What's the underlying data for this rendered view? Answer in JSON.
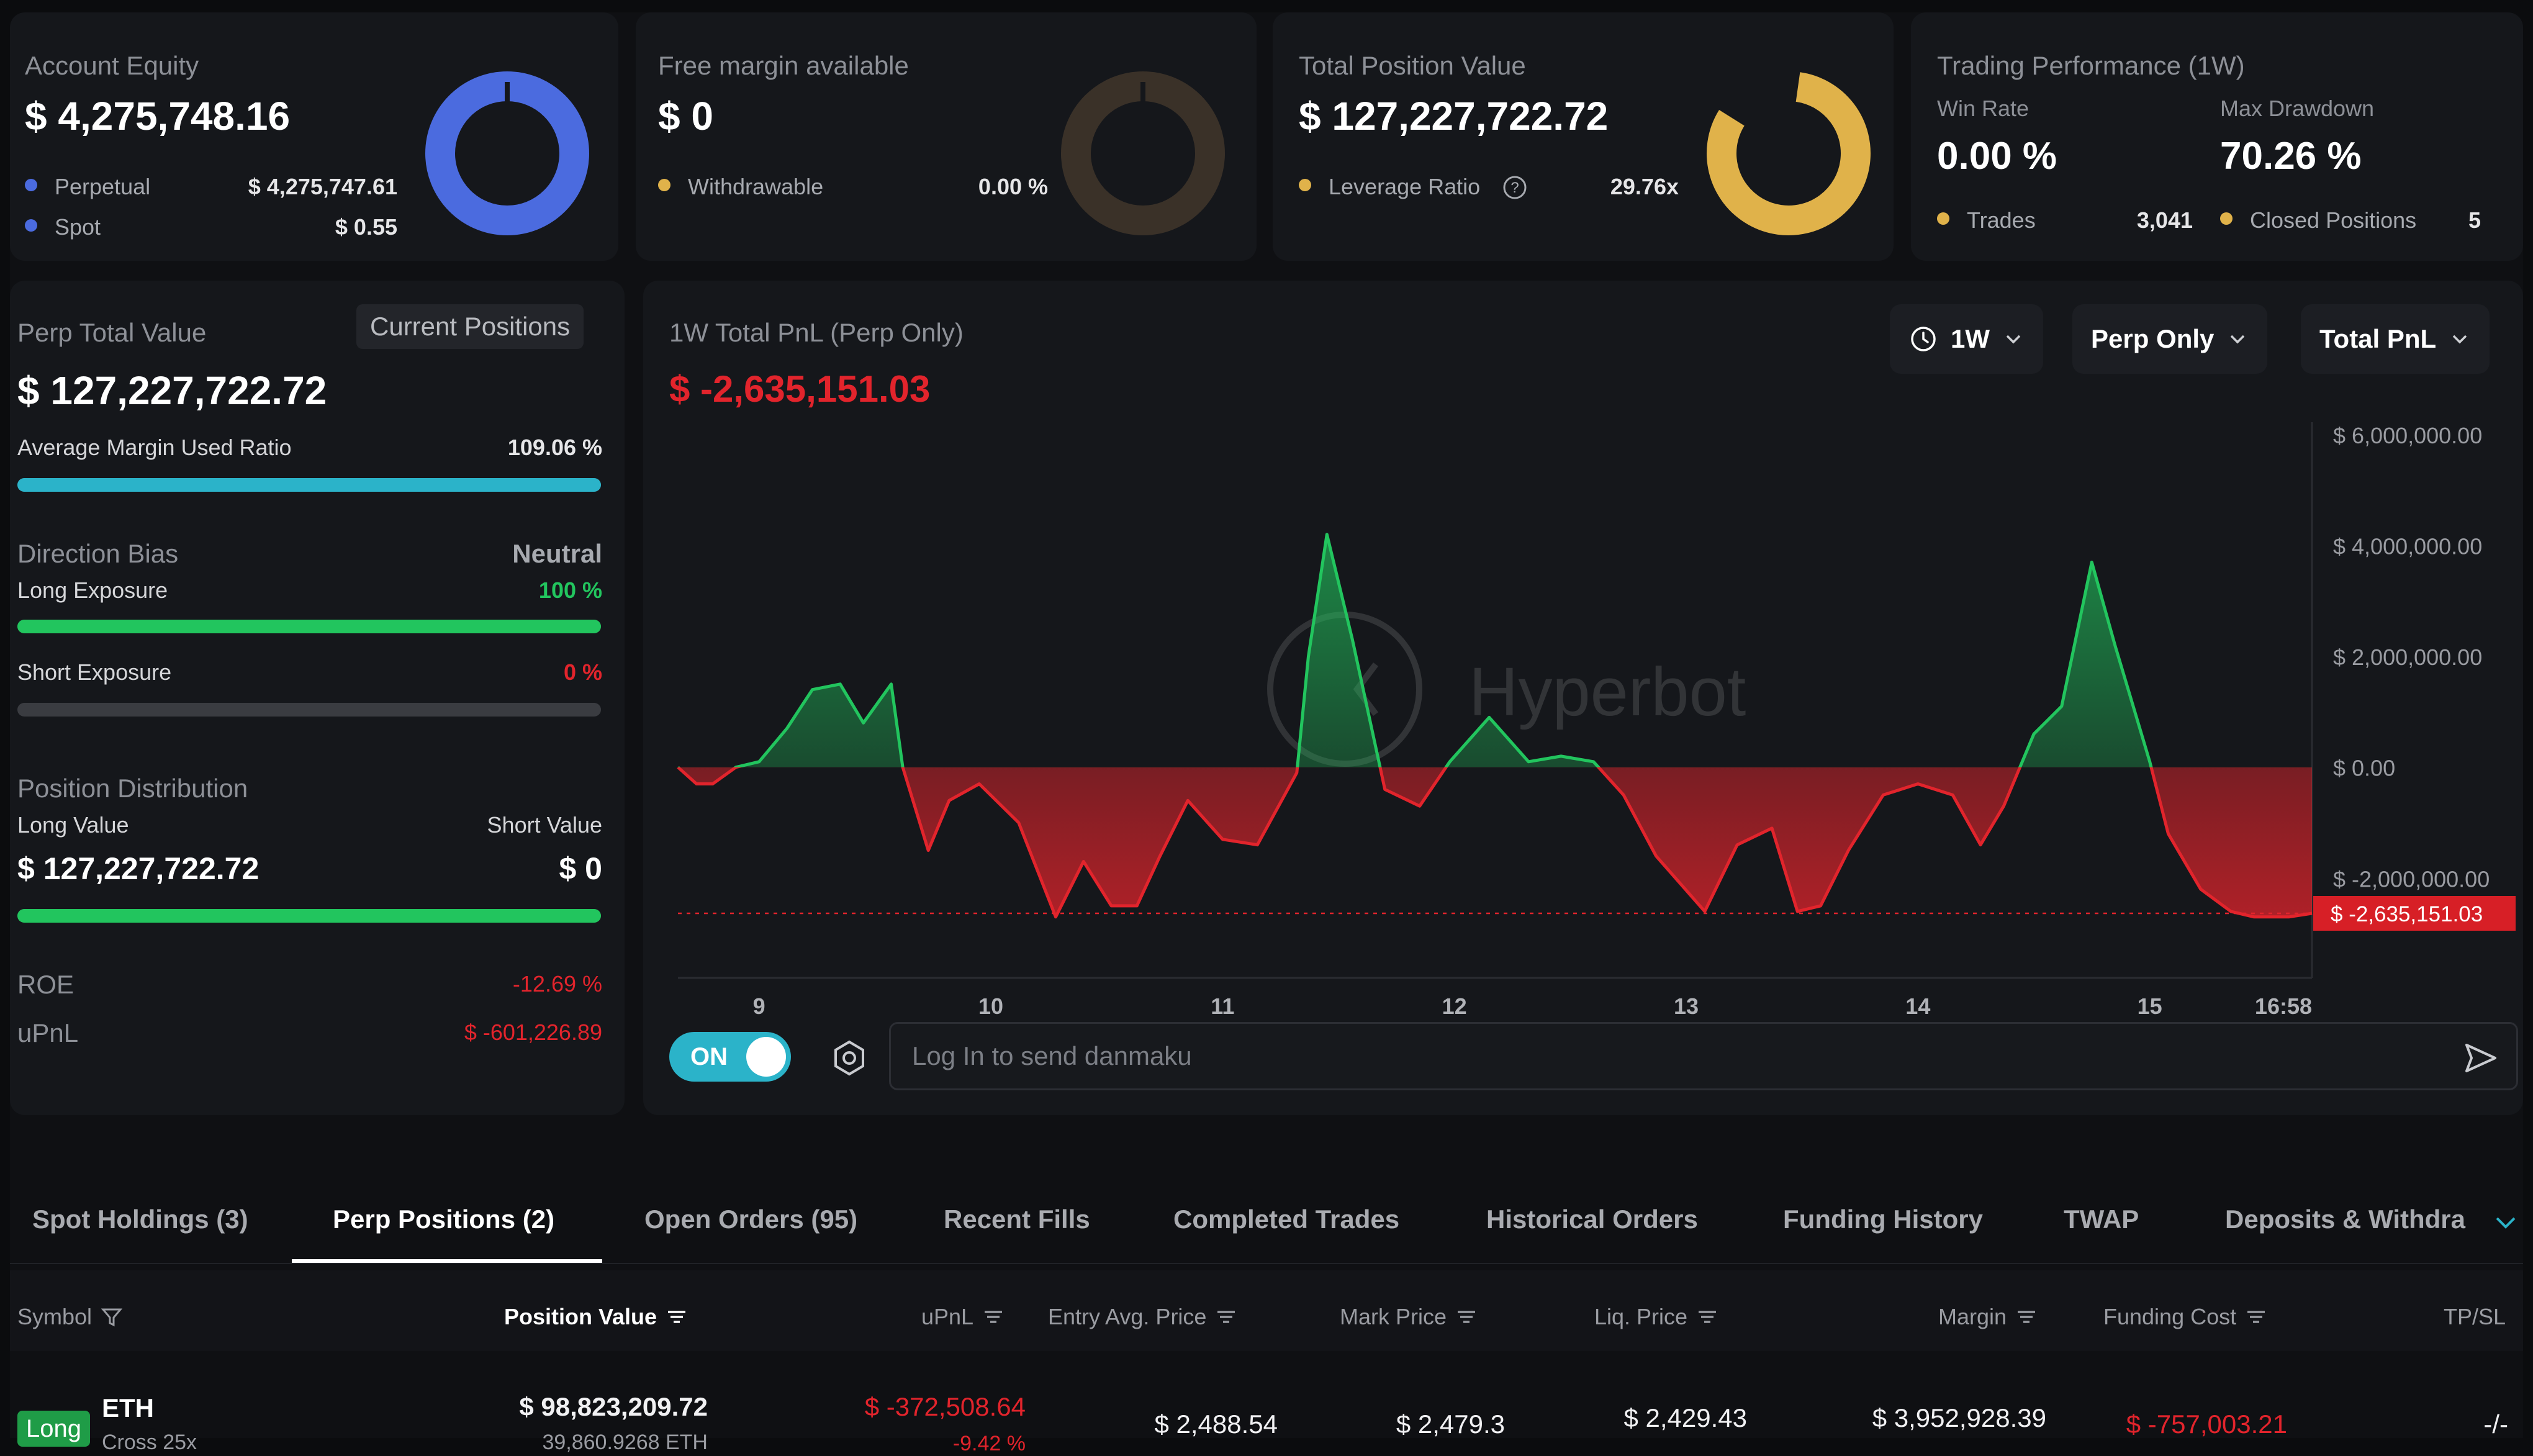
{
  "equity": {
    "title": "Account Equity",
    "value": "$ 4,275,748.16",
    "perpetual_label": "Perpetual",
    "perpetual_value": "$ 4,275,747.61",
    "spot_label": "Spot",
    "spot_value": "$ 0.55",
    "colors": {
      "perpetual": "#4b6bdf",
      "spot": "#4b6bdf"
    }
  },
  "free_margin": {
    "title": "Free margin available",
    "value": "$ 0",
    "withdrawable_label": "Withdrawable",
    "withdrawable_value": "0.00 %"
  },
  "position_value": {
    "title": "Total Position Value",
    "value": "$ 127,227,722.72",
    "leverage_label": "Leverage Ratio",
    "leverage_value": "29.76x",
    "help_icon": "question-circle-icon"
  },
  "performance": {
    "title": "Trading Performance (1W)",
    "win_rate_label": "Win Rate",
    "win_rate_value": "0.00 %",
    "max_drawdown_label": "Max Drawdown",
    "max_drawdown_value": "70.26 %",
    "trades_label": "Trades",
    "trades_value": "3,041",
    "closed_label": "Closed Positions",
    "closed_value": "5"
  },
  "perp_panel": {
    "title": "Perp Total Value",
    "current_positions_button": "Current Positions",
    "value": "$ 127,227,722.72",
    "avg_margin_label": "Average Margin Used Ratio",
    "avg_margin_value": "109.06 %",
    "avg_margin_fraction": 1.0,
    "direction_label": "Direction Bias",
    "direction_value": "Neutral",
    "long_label": "Long Exposure",
    "long_value": "100 %",
    "long_fraction": 1.0,
    "short_label": "Short Exposure",
    "short_value": "0 %",
    "short_fraction": 0.0,
    "distribution_label": "Position Distribution",
    "long_value_label": "Long Value",
    "short_value_label": "Short Value",
    "long_amount": "$ 127,227,722.72",
    "short_amount": "$ 0",
    "distribution_fraction": 1.0,
    "roe_label": "ROE",
    "roe_value": "-12.69 %",
    "upnl_label": "uPnL",
    "upnl_value": "$ -601,226.89"
  },
  "pnl_chart": {
    "title": "1W Total PnL (Perp Only)",
    "value": "$ -2,635,151.03",
    "range_dropdown": "1W",
    "scope_dropdown": "Perp Only",
    "metric_dropdown": "Total PnL",
    "watermark": "Hyperbot",
    "current_label": "$ -2,635,151.03",
    "danmaku_toggle": "ON",
    "danmaku_placeholder": "Log In to send danmaku"
  },
  "chart_data": {
    "type": "area",
    "y_tick_labels": [
      "$ 6,000,000.00",
      "$ 4,000,000.00",
      "$ 2,000,000.00",
      "$ 0.00",
      "$ -2,000,000.00"
    ],
    "y_ticks": [
      6000000,
      4000000,
      2000000,
      0,
      -2000000
    ],
    "ylim": [
      -3800000,
      6000000
    ],
    "x_tick_labels": [
      "9",
      "10",
      "11",
      "12",
      "13",
      "14",
      "15",
      "16:58"
    ],
    "x_ticks": [
      0.6,
      1.6,
      2.6,
      3.6,
      4.6,
      5.6,
      6.6,
      7.3
    ],
    "xlim": [
      0.25,
      7.3
    ],
    "current_value": -2635151.03,
    "x": [
      0.25,
      0.33,
      0.4,
      0.5,
      0.6,
      0.72,
      0.83,
      0.95,
      1.05,
      1.17,
      1.22,
      1.33,
      1.42,
      1.55,
      1.72,
      1.88,
      2.0,
      2.12,
      2.23,
      2.33,
      2.45,
      2.6,
      2.75,
      2.92,
      2.97,
      3.05,
      3.16,
      3.3,
      3.45,
      3.58,
      3.75,
      3.92,
      4.06,
      4.2,
      4.33,
      4.47,
      4.68,
      4.82,
      4.97,
      5.08,
      5.18,
      5.3,
      5.45,
      5.6,
      5.75,
      5.87,
      5.97,
      6.1,
      6.22,
      6.35,
      6.45,
      6.6,
      6.68,
      6.82,
      6.95,
      7.05,
      7.2,
      7.3
    ],
    "y": [
      0,
      -300000,
      -300000,
      0,
      100000,
      700000,
      1400000,
      1500000,
      800000,
      1500000,
      0,
      -1500000,
      -600000,
      -300000,
      -1000000,
      -2700000,
      -1700000,
      -2500000,
      -2500000,
      -1600000,
      -600000,
      -1300000,
      -1400000,
      -100000,
      2000000,
      4200000,
      2300000,
      -400000,
      -700000,
      100000,
      900000,
      100000,
      200000,
      100000,
      -500000,
      -1600000,
      -2600000,
      -1400000,
      -1100000,
      -2600000,
      -2500000,
      -1500000,
      -500000,
      -300000,
      -500000,
      -1400000,
      -700000,
      600000,
      1100000,
      3700000,
      2200000,
      100000,
      -1200000,
      -2200000,
      -2600000,
      -2700000,
      -2700000,
      -2635151
    ]
  },
  "tabs": [
    "Spot Holdings (3)",
    "Perp Positions (2)",
    "Open Orders (95)",
    "Recent Fills",
    "Completed Trades",
    "Historical Orders",
    "Funding History",
    "TWAP",
    "Deposits & Withdra"
  ],
  "table": {
    "headers": {
      "symbol": "Symbol",
      "position_value": "Position Value",
      "upnl": "uPnL",
      "entry": "Entry Avg. Price",
      "mark": "Mark Price",
      "liq": "Liq. Price",
      "margin": "Margin",
      "funding": "Funding Cost",
      "tpsl": "TP/SL"
    },
    "rows": [
      {
        "side": "Long",
        "symbol": "ETH",
        "mode": "Cross 25x",
        "position_value": "$ 98,823,209.72",
        "position_size": "39,860.9268 ETH",
        "upnl": "$ -372,508.64",
        "upnl_pct": "-9.42 %",
        "entry": "$ 2,488.54",
        "mark": "$ 2,479.3",
        "liq": "$ 2,429.43",
        "margin": "$ 3,952,928.39",
        "funding": "$ -757,003.21",
        "tpsl": "-/-"
      }
    ]
  },
  "colors": {
    "accent_green": "#22c55e",
    "accent_red": "#e2242c",
    "bar_blue": "#2bb3c9",
    "donut_blue": "#4b6bdf",
    "donut_gold": "#e0b24a",
    "toggle": "#2bb3c9"
  }
}
